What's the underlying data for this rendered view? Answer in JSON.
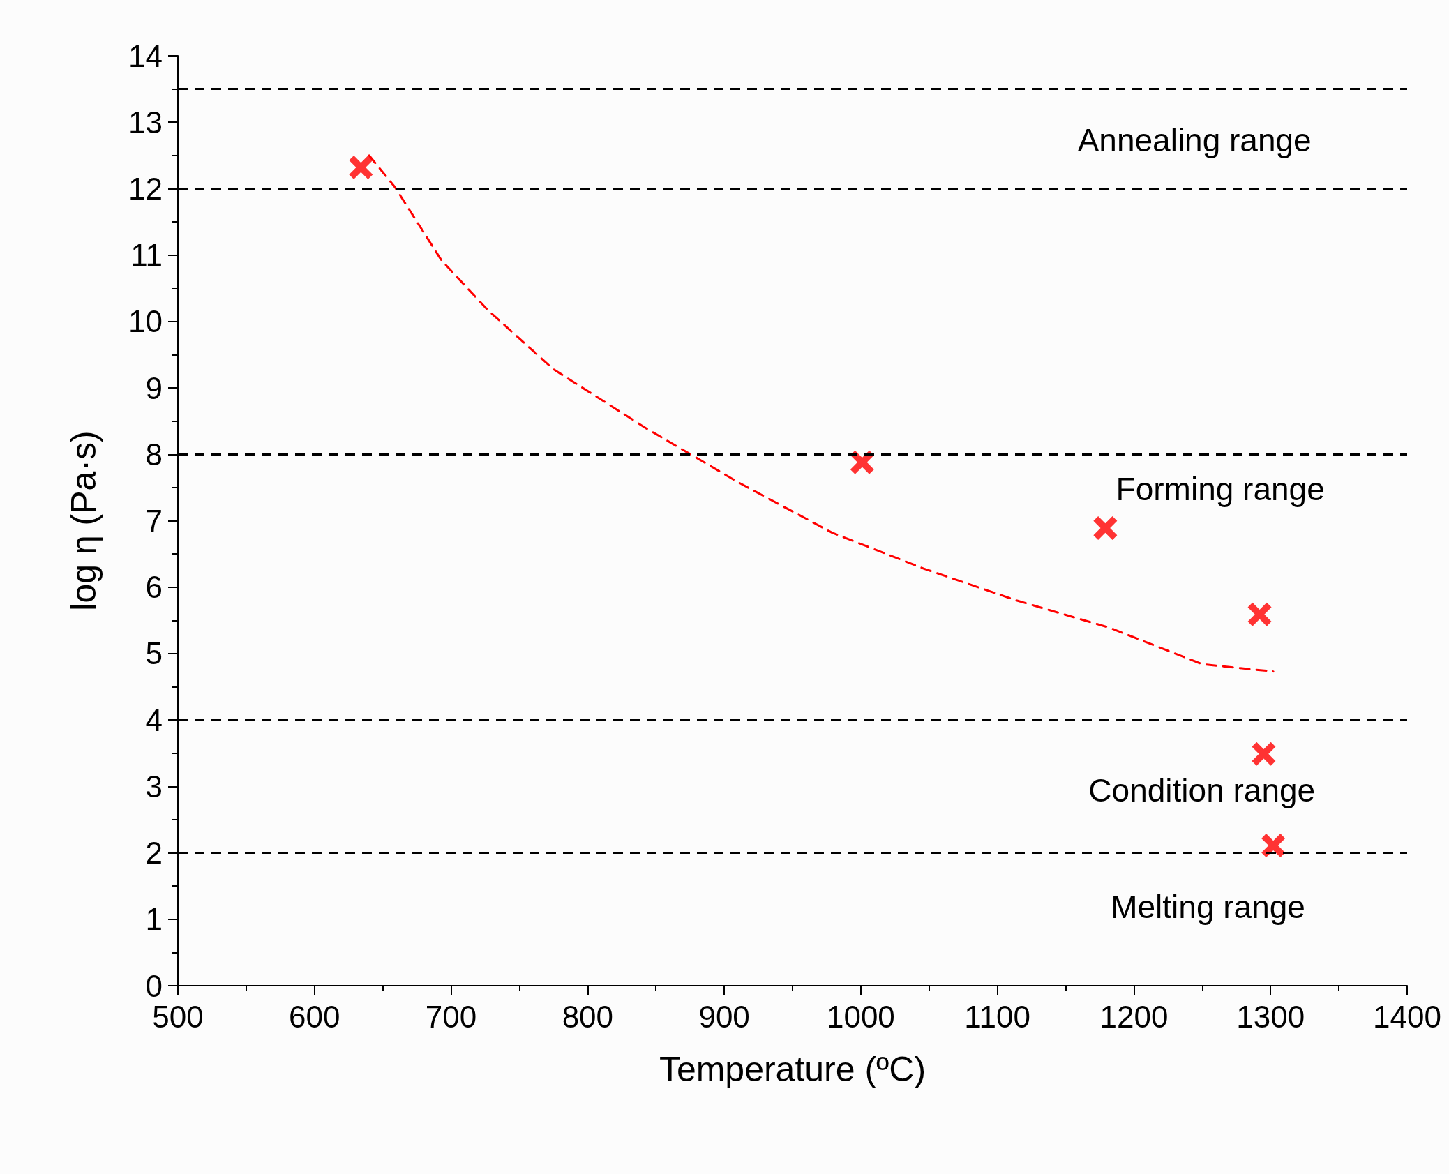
{
  "chart_data": {
    "type": "scatter",
    "xlabel": "Temperature (ºC)",
    "ylabel": "log η (Pa·s)",
    "xlim": [
      500,
      1400
    ],
    "xticks": [
      500,
      600,
      700,
      800,
      900,
      1000,
      1100,
      1200,
      1300,
      1400
    ],
    "ylim": [
      0,
      14
    ],
    "yticks": [
      0,
      1,
      2,
      3,
      4,
      5,
      6,
      7,
      8,
      9,
      10,
      11,
      12,
      13,
      14
    ],
    "grid": false,
    "series": [
      {
        "color": "#ff0000",
        "marker": "cross",
        "x": [
          634,
          1001,
          1179,
          1292,
          1295,
          1302
        ],
        "values": [
          12.32,
          7.88,
          6.89,
          5.59,
          3.49,
          2.11
        ]
      },
      {
        "type": "line",
        "color": "#ff0000",
        "marker": "none",
        "line_style": "dashed",
        "x": [
          640,
          659,
          693,
          727,
          775,
          843,
          911,
          979,
          1046,
          1114,
          1182,
          1250,
          1302
        ],
        "values": [
          12.5,
          12.02,
          10.92,
          10.17,
          9.28,
          8.39,
          7.57,
          6.82,
          6.28,
          5.8,
          5.39,
          4.84,
          4.73
        ]
      }
    ],
    "ref_lines": [
      {
        "axis": "y",
        "value": 13.5,
        "color": "#000000",
        "line_style": "dashed"
      },
      {
        "axis": "y",
        "value": 12,
        "color": "#000000",
        "line_style": "dashed"
      },
      {
        "axis": "y",
        "value": 8,
        "color": "#000000",
        "line_style": "dashed"
      },
      {
        "axis": "y",
        "value": 4,
        "color": "#000000",
        "line_style": "dashed"
      },
      {
        "axis": "y",
        "value": 2,
        "color": "#000000",
        "line_style": "dashed"
      }
    ],
    "annotations": [
      "Annealing range",
      "Forming range",
      "Condition range",
      "Melting range"
    ]
  }
}
